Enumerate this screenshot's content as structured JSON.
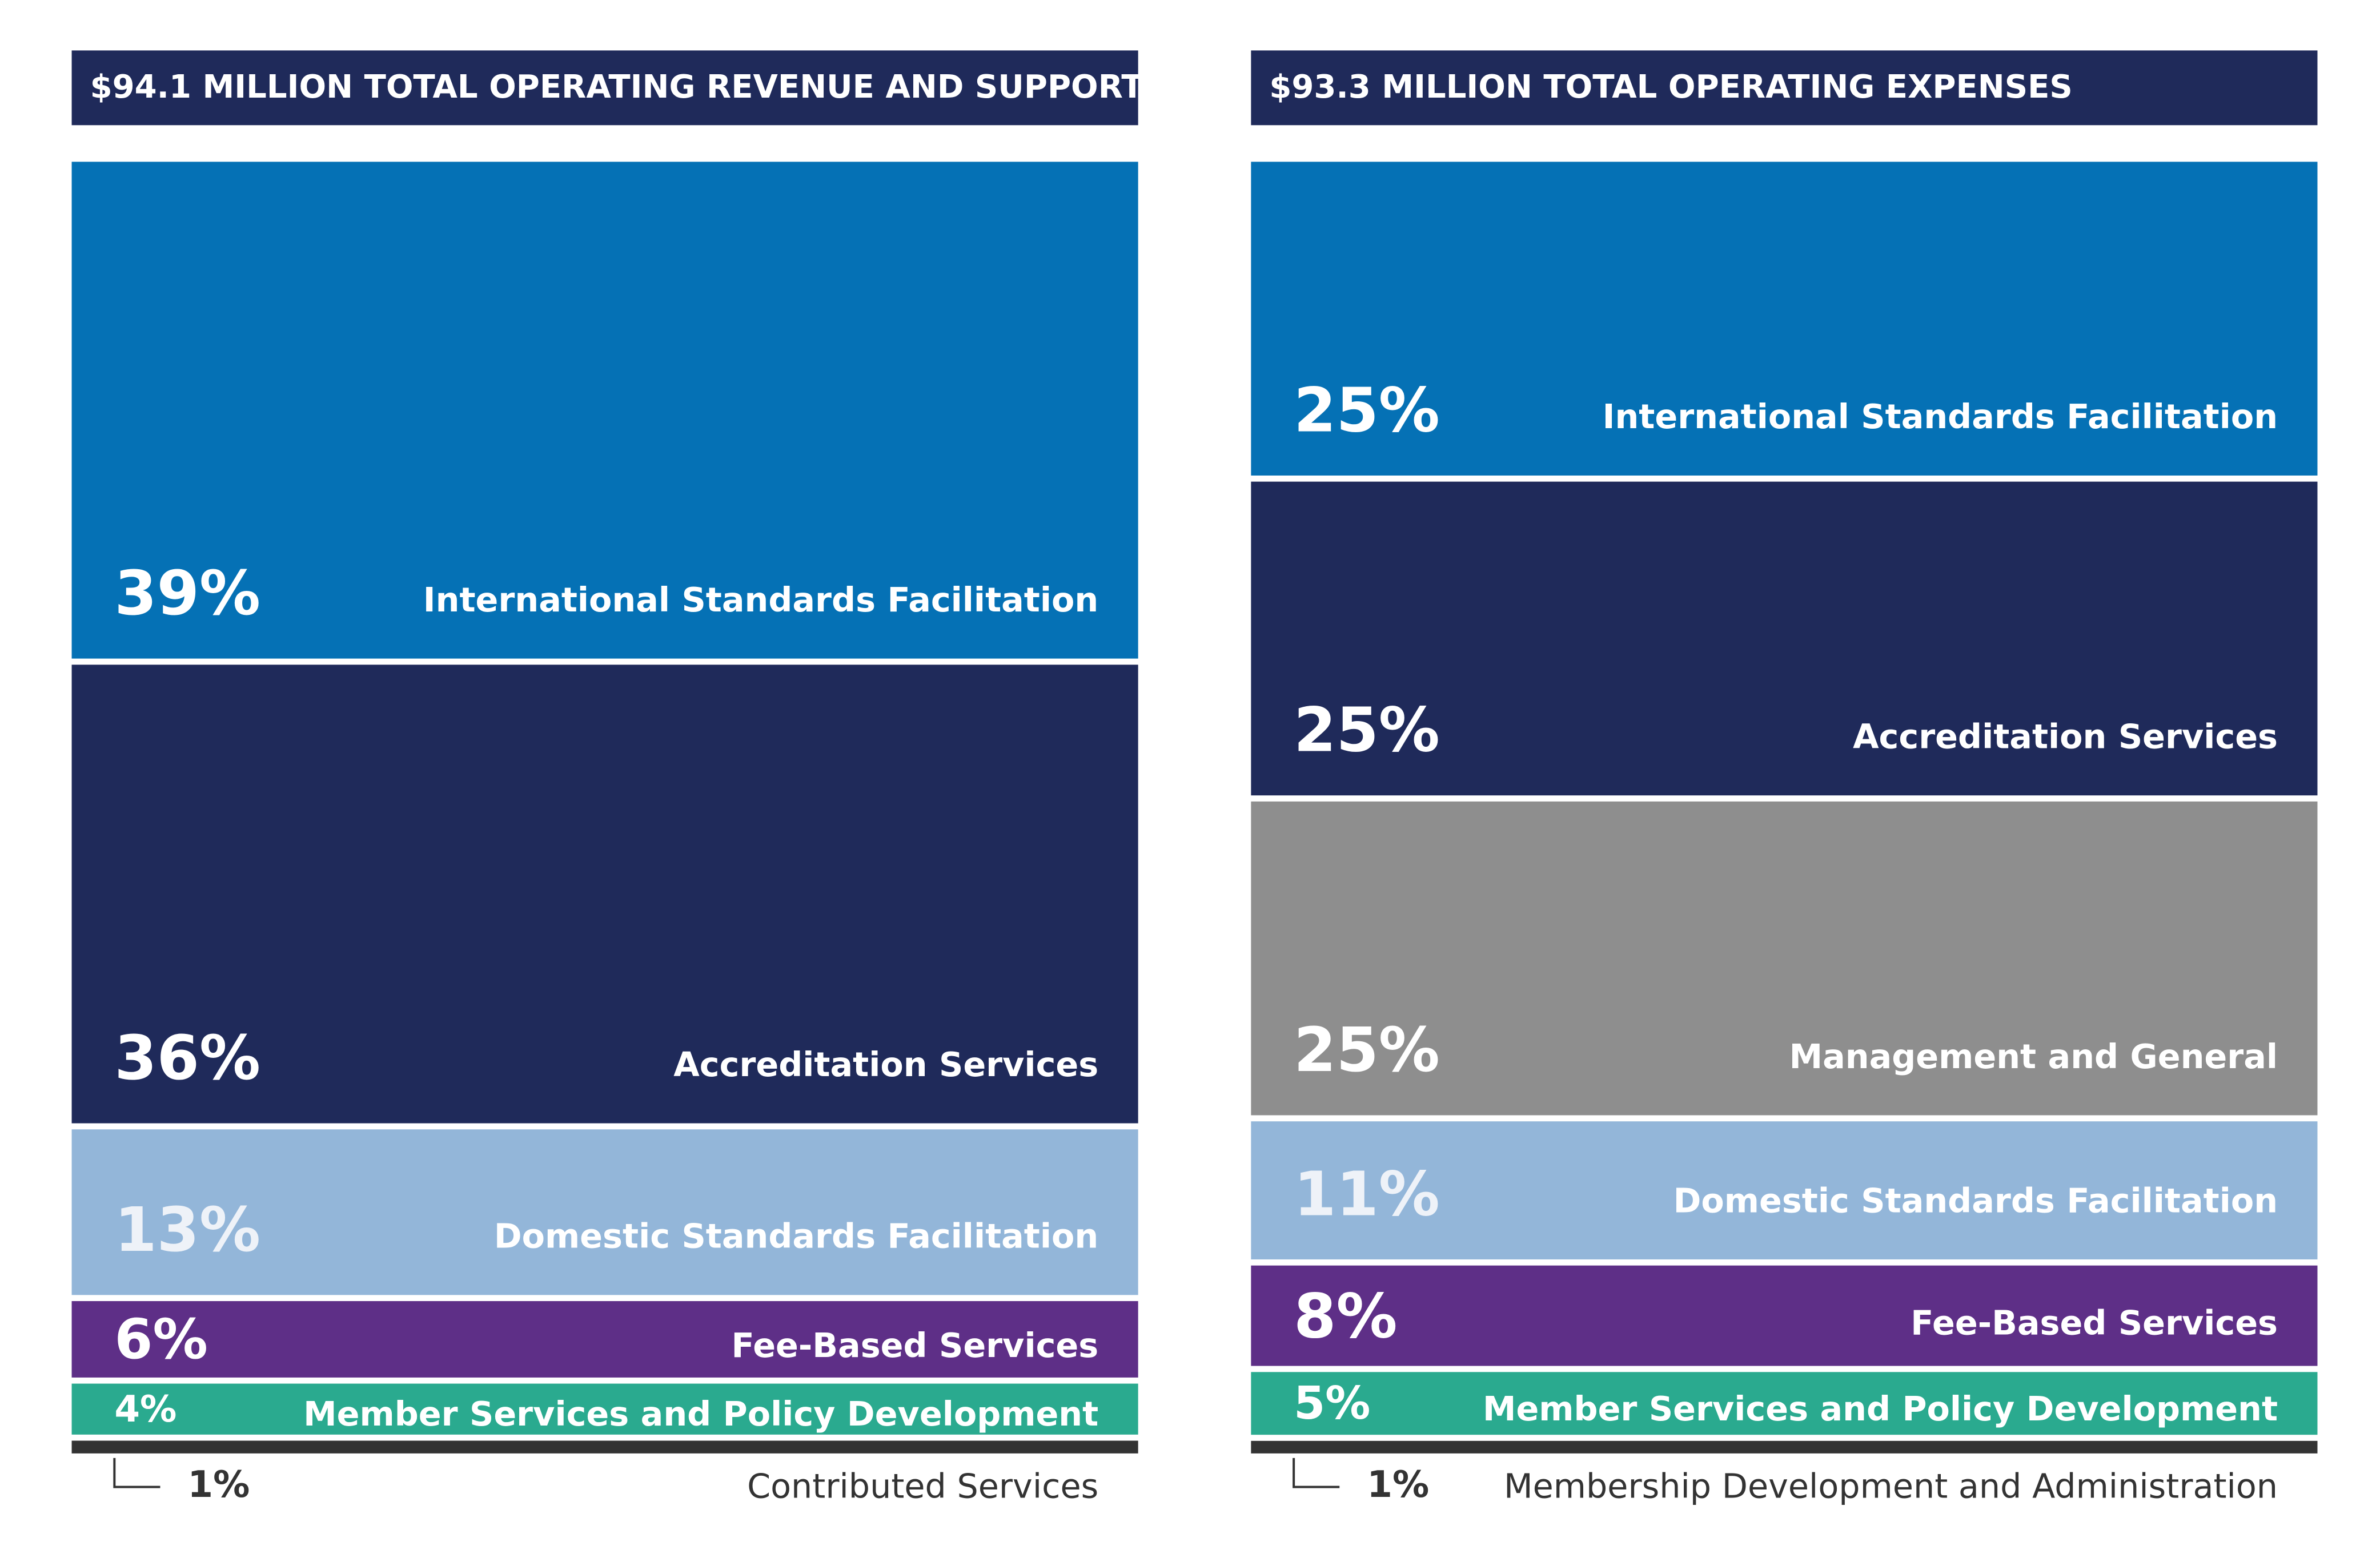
{
  "chart_data": [
    {
      "type": "stacked-bar",
      "title": "$94.1 MILLION TOTAL OPERATING REVENUE AND SUPPORT",
      "categories": [
        "International Standards Facilitation",
        "Accreditation Services",
        "Domestic Standards Facilitation",
        "Fee-Based Services",
        "Member Services and Policy Development",
        "Contributed Services"
      ],
      "values": [
        39,
        36,
        13,
        6,
        4,
        1
      ],
      "value_labels": [
        "39%",
        "36%",
        "13%",
        "6%",
        "4%",
        "1%"
      ],
      "colors": [
        "#0571b5",
        "#1f2a5a",
        "#93b6d9",
        "#5e2f87",
        "#2aaa8f",
        "#333333"
      ]
    },
    {
      "type": "stacked-bar",
      "title": "$93.3 MILLION TOTAL OPERATING EXPENSES",
      "categories": [
        "International Standards Facilitation",
        "Accreditation Services",
        "Management and General",
        "Domestic Standards Facilitation",
        "Fee-Based Services",
        "Member Services and Policy Development",
        "Membership Development and Administration"
      ],
      "values": [
        25,
        25,
        25,
        11,
        8,
        5,
        1
      ],
      "value_labels": [
        "25%",
        "25%",
        "25%",
        "11%",
        "8%",
        "5%",
        "1%"
      ],
      "colors": [
        "#0571b5",
        "#1f2a5a",
        "#8e8e8e",
        "#93b6d9",
        "#5e2f87",
        "#2aaa8f",
        "#333333"
      ]
    }
  ]
}
